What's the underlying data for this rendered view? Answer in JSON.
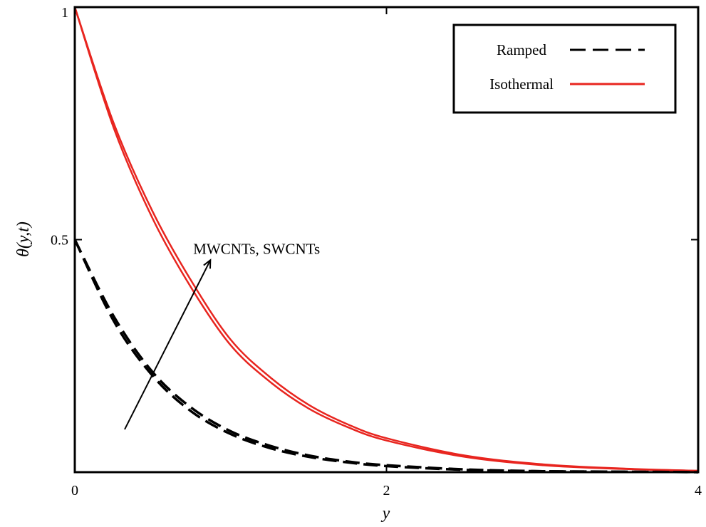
{
  "chart_data": {
    "type": "line",
    "title": "",
    "xlabel": "y",
    "ylabel": "θ(y,t)",
    "xlim": [
      0,
      4
    ],
    "ylim": [
      0,
      1
    ],
    "xticks": [
      "0",
      "2",
      "4"
    ],
    "yticks": [
      "0.5",
      "1"
    ],
    "grid": false,
    "legend_placement": "top-right",
    "legend": [
      {
        "label": "Ramped",
        "style": "dashed",
        "color": "#000000"
      },
      {
        "label": "Isothermal",
        "style": "solid",
        "color": "#e8251f"
      }
    ],
    "x": [
      0,
      0.25,
      0.5,
      0.75,
      1,
      1.25,
      1.5,
      1.75,
      2,
      2.5,
      3,
      3.5,
      4
    ],
    "series": [
      {
        "group": "Isothermal",
        "color": "#e8251f",
        "style": "solid",
        "values": [
          1,
          0.75,
          0.56,
          0.41,
          0.285,
          0.205,
          0.145,
          0.103,
          0.073,
          0.036,
          0.017,
          0.008,
          0.003
        ]
      },
      {
        "group": "Isothermal",
        "color": "#e8251f",
        "style": "solid",
        "values": [
          1,
          0.74,
          0.545,
          0.395,
          0.273,
          0.195,
          0.137,
          0.097,
          0.068,
          0.033,
          0.015,
          0.007,
          0.003
        ]
      },
      {
        "group": "Ramped",
        "color": "#000000",
        "style": "dashed",
        "values": [
          0.5,
          0.335,
          0.215,
          0.138,
          0.088,
          0.057,
          0.036,
          0.023,
          0.015,
          0.006,
          0.002,
          0.001,
          0
        ]
      },
      {
        "group": "Ramped",
        "color": "#000000",
        "style": "dashed",
        "values": [
          0.5,
          0.325,
          0.207,
          0.13,
          0.082,
          0.052,
          0.033,
          0.021,
          0.013,
          0.005,
          0.002,
          0.001,
          0
        ]
      }
    ],
    "annotations": [
      {
        "text": "MWCNTs, SWCNTs",
        "x": 0.76,
        "y": 0.48,
        "arrow": {
          "from": [
            0.32,
            0.092
          ],
          "to": [
            0.87,
            0.456
          ]
        }
      }
    ]
  }
}
